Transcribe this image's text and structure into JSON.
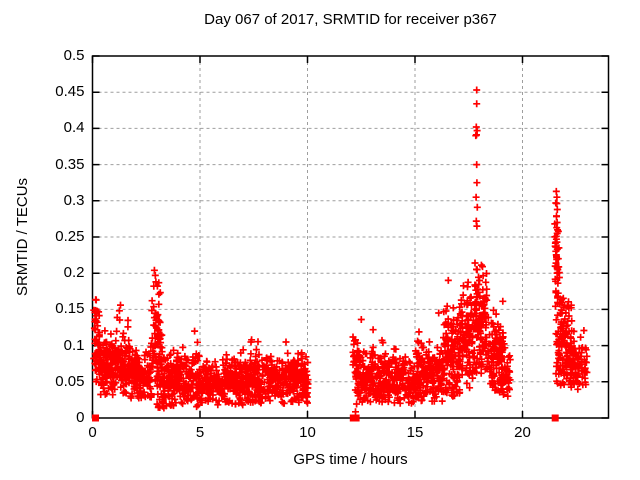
{
  "chart_data": {
    "type": "scatter",
    "title": "Day 067 of 2017, SRMTID for receiver p367",
    "xlabel": "GPS time / hours",
    "ylabel": "SRMTID / TECUs",
    "xlim": [
      0,
      24
    ],
    "ylim": [
      0,
      0.5
    ],
    "xticks": [
      {
        "v": 0,
        "label": "0"
      },
      {
        "v": 5,
        "label": "5"
      },
      {
        "v": 10,
        "label": "10"
      },
      {
        "v": 15,
        "label": "15"
      },
      {
        "v": 20,
        "label": "20"
      }
    ],
    "yticks": [
      {
        "v": 0,
        "label": "0"
      },
      {
        "v": 0.05,
        "label": "0.05"
      },
      {
        "v": 0.1,
        "label": "0.1"
      },
      {
        "v": 0.15,
        "label": "0.15"
      },
      {
        "v": 0.2,
        "label": "0.2"
      },
      {
        "v": 0.25,
        "label": "0.25"
      },
      {
        "v": 0.3,
        "label": "0.3"
      },
      {
        "v": 0.35,
        "label": "0.35"
      },
      {
        "v": 0.4,
        "label": "0.4"
      },
      {
        "v": 0.45,
        "label": "0.45"
      },
      {
        "v": 0.5,
        "label": "0.5"
      }
    ],
    "grid": true,
    "legend": "none",
    "marker": {
      "shape": "plus",
      "color": "#ff0000",
      "size": 7,
      "stroke_width": 1.7
    },
    "colors": {
      "frame": "#000000",
      "grid": "#9e9e9e",
      "text": "#000000",
      "background": "#ffffff",
      "series": "#ff0000"
    },
    "seed": 20170667,
    "clusters": [
      {
        "x0": 0.05,
        "x1": 0.35,
        "n": 45,
        "mean": 0.095,
        "sd": 0.032,
        "min": 0.048,
        "max": 0.165
      },
      {
        "x0": 0.3,
        "x1": 1.1,
        "n": 130,
        "mean": 0.07,
        "sd": 0.022,
        "min": 0.032,
        "max": 0.148
      },
      {
        "x0": 1.1,
        "x1": 1.75,
        "n": 95,
        "mean": 0.072,
        "sd": 0.027,
        "min": 0.034,
        "max": 0.158
      },
      {
        "x0": 1.75,
        "x1": 2.75,
        "n": 140,
        "mean": 0.058,
        "sd": 0.019,
        "min": 0.027,
        "max": 0.125
      },
      {
        "x0": 2.75,
        "x1": 3.25,
        "n": 70,
        "mean": 0.112,
        "sd": 0.04,
        "min": 0.04,
        "max": 0.2
      },
      {
        "x0": 3.0,
        "x1": 4.2,
        "n": 165,
        "mean": 0.048,
        "sd": 0.019,
        "min": 0.012,
        "max": 0.13
      },
      {
        "x0": 4.2,
        "x1": 5.1,
        "n": 115,
        "mean": 0.047,
        "sd": 0.018,
        "min": 0.014,
        "max": 0.122
      },
      {
        "x0": 5.1,
        "x1": 7.0,
        "n": 250,
        "mean": 0.05,
        "sd": 0.016,
        "min": 0.018,
        "max": 0.105
      },
      {
        "x0": 7.0,
        "x1": 8.2,
        "n": 155,
        "mean": 0.054,
        "sd": 0.018,
        "min": 0.02,
        "max": 0.115
      },
      {
        "x0": 8.2,
        "x1": 10.05,
        "n": 235,
        "mean": 0.052,
        "sd": 0.017,
        "min": 0.018,
        "max": 0.112
      },
      {
        "x0": 12.1,
        "x1": 12.35,
        "n": 30,
        "mean": 0.068,
        "sd": 0.03,
        "min": 0.004,
        "max": 0.125
      },
      {
        "x0": 12.3,
        "x1": 13.6,
        "n": 165,
        "mean": 0.055,
        "sd": 0.02,
        "min": 0.022,
        "max": 0.135
      },
      {
        "x0": 13.6,
        "x1": 15.0,
        "n": 165,
        "mean": 0.052,
        "sd": 0.019,
        "min": 0.02,
        "max": 0.12
      },
      {
        "x0": 15.0,
        "x1": 16.3,
        "n": 165,
        "mean": 0.06,
        "sd": 0.022,
        "min": 0.022,
        "max": 0.148
      },
      {
        "x0": 16.3,
        "x1": 17.1,
        "n": 130,
        "mean": 0.09,
        "sd": 0.032,
        "min": 0.03,
        "max": 0.19
      },
      {
        "x0": 17.1,
        "x1": 17.75,
        "n": 105,
        "mean": 0.108,
        "sd": 0.034,
        "min": 0.04,
        "max": 0.2
      },
      {
        "x0": 17.75,
        "x1": 18.35,
        "n": 120,
        "mean": 0.14,
        "sd": 0.045,
        "min": 0.06,
        "max": 0.262
      },
      {
        "x0": 18.35,
        "x1": 19.1,
        "n": 105,
        "mean": 0.085,
        "sd": 0.028,
        "min": 0.035,
        "max": 0.165
      },
      {
        "x0": 19.0,
        "x1": 19.45,
        "n": 45,
        "mean": 0.062,
        "sd": 0.019,
        "min": 0.03,
        "max": 0.115
      },
      {
        "x0": 21.5,
        "x1": 21.72,
        "n": 38,
        "mean": 0.2,
        "sd": 0.05,
        "min": 0.105,
        "max": 0.3
      },
      {
        "x0": 21.55,
        "x1": 22.3,
        "n": 130,
        "mean": 0.105,
        "sd": 0.032,
        "min": 0.045,
        "max": 0.19
      },
      {
        "x0": 22.2,
        "x1": 23.0,
        "n": 85,
        "mean": 0.075,
        "sd": 0.021,
        "min": 0.038,
        "max": 0.132
      }
    ],
    "outlier_points": [
      [
        0.17,
        0.163
      ],
      [
        1.3,
        0.156
      ],
      [
        1.25,
        0.148
      ],
      [
        2.88,
        0.204
      ],
      [
        2.92,
        0.197
      ],
      [
        2.95,
        0.188
      ],
      [
        2.85,
        0.182
      ],
      [
        4.75,
        0.12
      ],
      [
        7.4,
        0.108
      ],
      [
        9.0,
        0.105
      ],
      [
        12.5,
        0.136
      ],
      [
        13.05,
        0.122
      ],
      [
        16.1,
        0.145
      ],
      [
        16.55,
        0.19
      ],
      [
        17.87,
        0.453
      ],
      [
        17.87,
        0.434
      ],
      [
        17.85,
        0.402
      ],
      [
        17.89,
        0.397
      ],
      [
        17.86,
        0.391
      ],
      [
        17.83,
        0.39
      ],
      [
        17.87,
        0.35
      ],
      [
        17.88,
        0.325
      ],
      [
        17.84,
        0.305
      ],
      [
        17.9,
        0.291
      ],
      [
        17.85,
        0.272
      ],
      [
        17.88,
        0.265
      ],
      [
        21.57,
        0.313
      ],
      [
        21.6,
        0.305
      ],
      [
        21.55,
        0.297
      ],
      [
        21.62,
        0.288
      ],
      [
        21.58,
        0.279
      ],
      [
        21.61,
        0.27
      ],
      [
        21.63,
        0.26
      ],
      [
        21.57,
        0.251
      ],
      [
        21.6,
        0.243
      ],
      [
        21.62,
        0.233
      ],
      [
        21.58,
        0.223
      ],
      [
        21.56,
        0.214
      ],
      [
        21.64,
        0.205
      ]
    ],
    "zero_markers": [
      0.14,
      12.13,
      12.26,
      21.52
    ]
  }
}
